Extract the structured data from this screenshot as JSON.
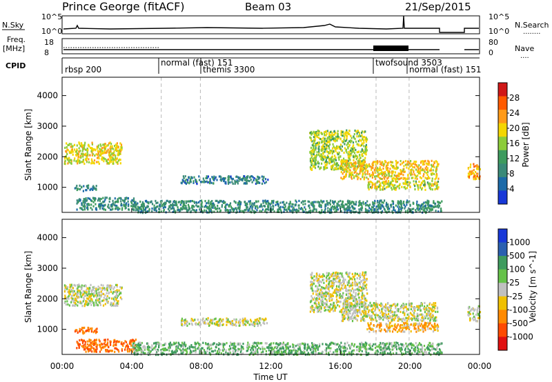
{
  "header": {
    "station": "Prince George (fitACF)",
    "beam": "Beam 03",
    "date": "21/Sep/2015"
  },
  "noise_panel": {
    "left_label": "N.Sky",
    "right_label": "N.Search",
    "right_dots": "........",
    "left_ticks": [
      "10^5",
      "10^0"
    ],
    "right_ticks": [
      "10^5",
      "10^0"
    ]
  },
  "freq_panel": {
    "left_label_1": "Freq.",
    "left_label_2": "[MHz]",
    "right_label": "Nave",
    "right_dots": "....",
    "left_ticks": [
      "18",
      "8"
    ],
    "right_ticks": [
      "80",
      "0"
    ]
  },
  "cpid": {
    "label": "CPID",
    "segments": [
      {
        "label": "rbsp 200",
        "start_h": 0.0
      },
      {
        "label": "normal (fast) 151",
        "start_h": 5.7
      },
      {
        "label": "themis 3300",
        "start_h": 7.95
      },
      {
        "label": "twofsound 3503",
        "start_h": 18.05
      },
      {
        "label": "normal (fast) 151",
        "start_h": 19.95
      }
    ]
  },
  "power_colorbar": {
    "label": "Power [dB]",
    "ticks": [
      "28",
      "24",
      "20",
      "16",
      "12",
      "8",
      "4"
    ],
    "colors": [
      "#d01818",
      "#ff5a00",
      "#ff9a18",
      "#f4d600",
      "#8ccc3a",
      "#3e9b5e",
      "#3a8a78",
      "#1c6aa8",
      "#1838d8"
    ]
  },
  "velocity_colorbar": {
    "label": "Velocity [m s^-1]",
    "ticks": [
      "1000",
      "500",
      "100",
      "25",
      "-25",
      "-100",
      "-500",
      "-1000"
    ],
    "colors": [
      "#1838d8",
      "#2a60b0",
      "#3e9b5e",
      "#66c24a",
      "#c0c0c0",
      "#f0c000",
      "#ff8a00",
      "#ff4a00",
      "#e01010"
    ]
  },
  "axes": {
    "ylabel": "Slant Range [km]",
    "yticks": [
      "4000",
      "3000",
      "2000",
      "1000"
    ],
    "xticks": [
      "00:00",
      "04:00",
      "08:00",
      "12:00",
      "16:00",
      "20:00",
      "00:00"
    ],
    "xlabel": "Time UT"
  },
  "chart_data": [
    {
      "type": "line",
      "title": "Prince George (fitACF)",
      "panel": "noise",
      "series": [
        {
          "name": "N.Sky",
          "x_hours": [
            0,
            4,
            8,
            12,
            15,
            18,
            19.9,
            21.8
          ],
          "values_log10": [
            1.0,
            1.0,
            1.1,
            1.0,
            1.6,
            1.0,
            5.0,
            1.0
          ]
        }
      ],
      "x_range_hours": [
        0,
        24
      ]
    },
    {
      "type": "line",
      "panel": "frequency",
      "series": [
        {
          "name": "Freq.",
          "x_hours": [
            0,
            21.8
          ],
          "values": [
            10.5,
            10.5
          ]
        }
      ],
      "ylim": [
        8,
        18
      ],
      "x_range_hours": [
        0,
        24
      ]
    },
    {
      "type": "heatmap",
      "panel": "power",
      "xlabel": "Time UT",
      "ylabel": "Slant Range [km]",
      "x_range_hours": [
        0,
        24
      ],
      "ylim": [
        180,
        4600
      ],
      "colorbar": "Power [dB]",
      "color_range": [
        0,
        30
      ],
      "regions": [
        {
          "t0": 0.1,
          "t1": 3.4,
          "r0": 1800,
          "r1": 2500,
          "value": 19
        },
        {
          "t0": 0.7,
          "t1": 2.0,
          "r0": 900,
          "r1": 1100,
          "value": 8
        },
        {
          "t0": 0.8,
          "t1": 4.2,
          "r0": 300,
          "r1": 700,
          "value": 9
        },
        {
          "t0": 6.8,
          "t1": 11.8,
          "r0": 1150,
          "r1": 1400,
          "value": 7
        },
        {
          "t0": 4.0,
          "t1": 21.8,
          "r0": 200,
          "r1": 600,
          "value": 9
        },
        {
          "t0": 14.2,
          "t1": 17.5,
          "r0": 1600,
          "r1": 2900,
          "value": 17
        },
        {
          "t0": 16.0,
          "t1": 21.6,
          "r0": 1300,
          "r1": 1900,
          "value": 21
        },
        {
          "t0": 17.5,
          "t1": 21.6,
          "r0": 950,
          "r1": 1250,
          "value": 18
        },
        {
          "t0": 23.3,
          "t1": 24.0,
          "r0": 1300,
          "r1": 1800,
          "value": 23
        }
      ]
    },
    {
      "type": "heatmap",
      "panel": "velocity",
      "xlabel": "Time UT",
      "ylabel": "Slant Range [km]",
      "x_range_hours": [
        0,
        24
      ],
      "ylim": [
        180,
        4600
      ],
      "colorbar": "Velocity [m s^-1]",
      "color_range": [
        -1000,
        1000
      ],
      "regions": [
        {
          "t0": 0.1,
          "t1": 3.4,
          "r0": 1800,
          "r1": 2500,
          "value": 0
        },
        {
          "t0": 0.7,
          "t1": 2.0,
          "r0": 900,
          "r1": 1100,
          "value": -300
        },
        {
          "t0": 0.8,
          "t1": 4.2,
          "r0": 300,
          "r1": 700,
          "value": -300
        },
        {
          "t0": 6.8,
          "t1": 11.8,
          "r0": 1150,
          "r1": 1400,
          "value": 0
        },
        {
          "t0": 4.0,
          "t1": 21.8,
          "r0": 200,
          "r1": 600,
          "value": 60
        },
        {
          "t0": 14.2,
          "t1": 17.5,
          "r0": 1600,
          "r1": 2900,
          "value": 0
        },
        {
          "t0": 16.0,
          "t1": 21.6,
          "r0": 1300,
          "r1": 1900,
          "value": 0
        },
        {
          "t0": 17.5,
          "t1": 21.6,
          "r0": 950,
          "r1": 1250,
          "value": -60
        },
        {
          "t0": 23.3,
          "t1": 24.0,
          "r0": 1300,
          "r1": 1800,
          "value": 0
        }
      ]
    }
  ]
}
